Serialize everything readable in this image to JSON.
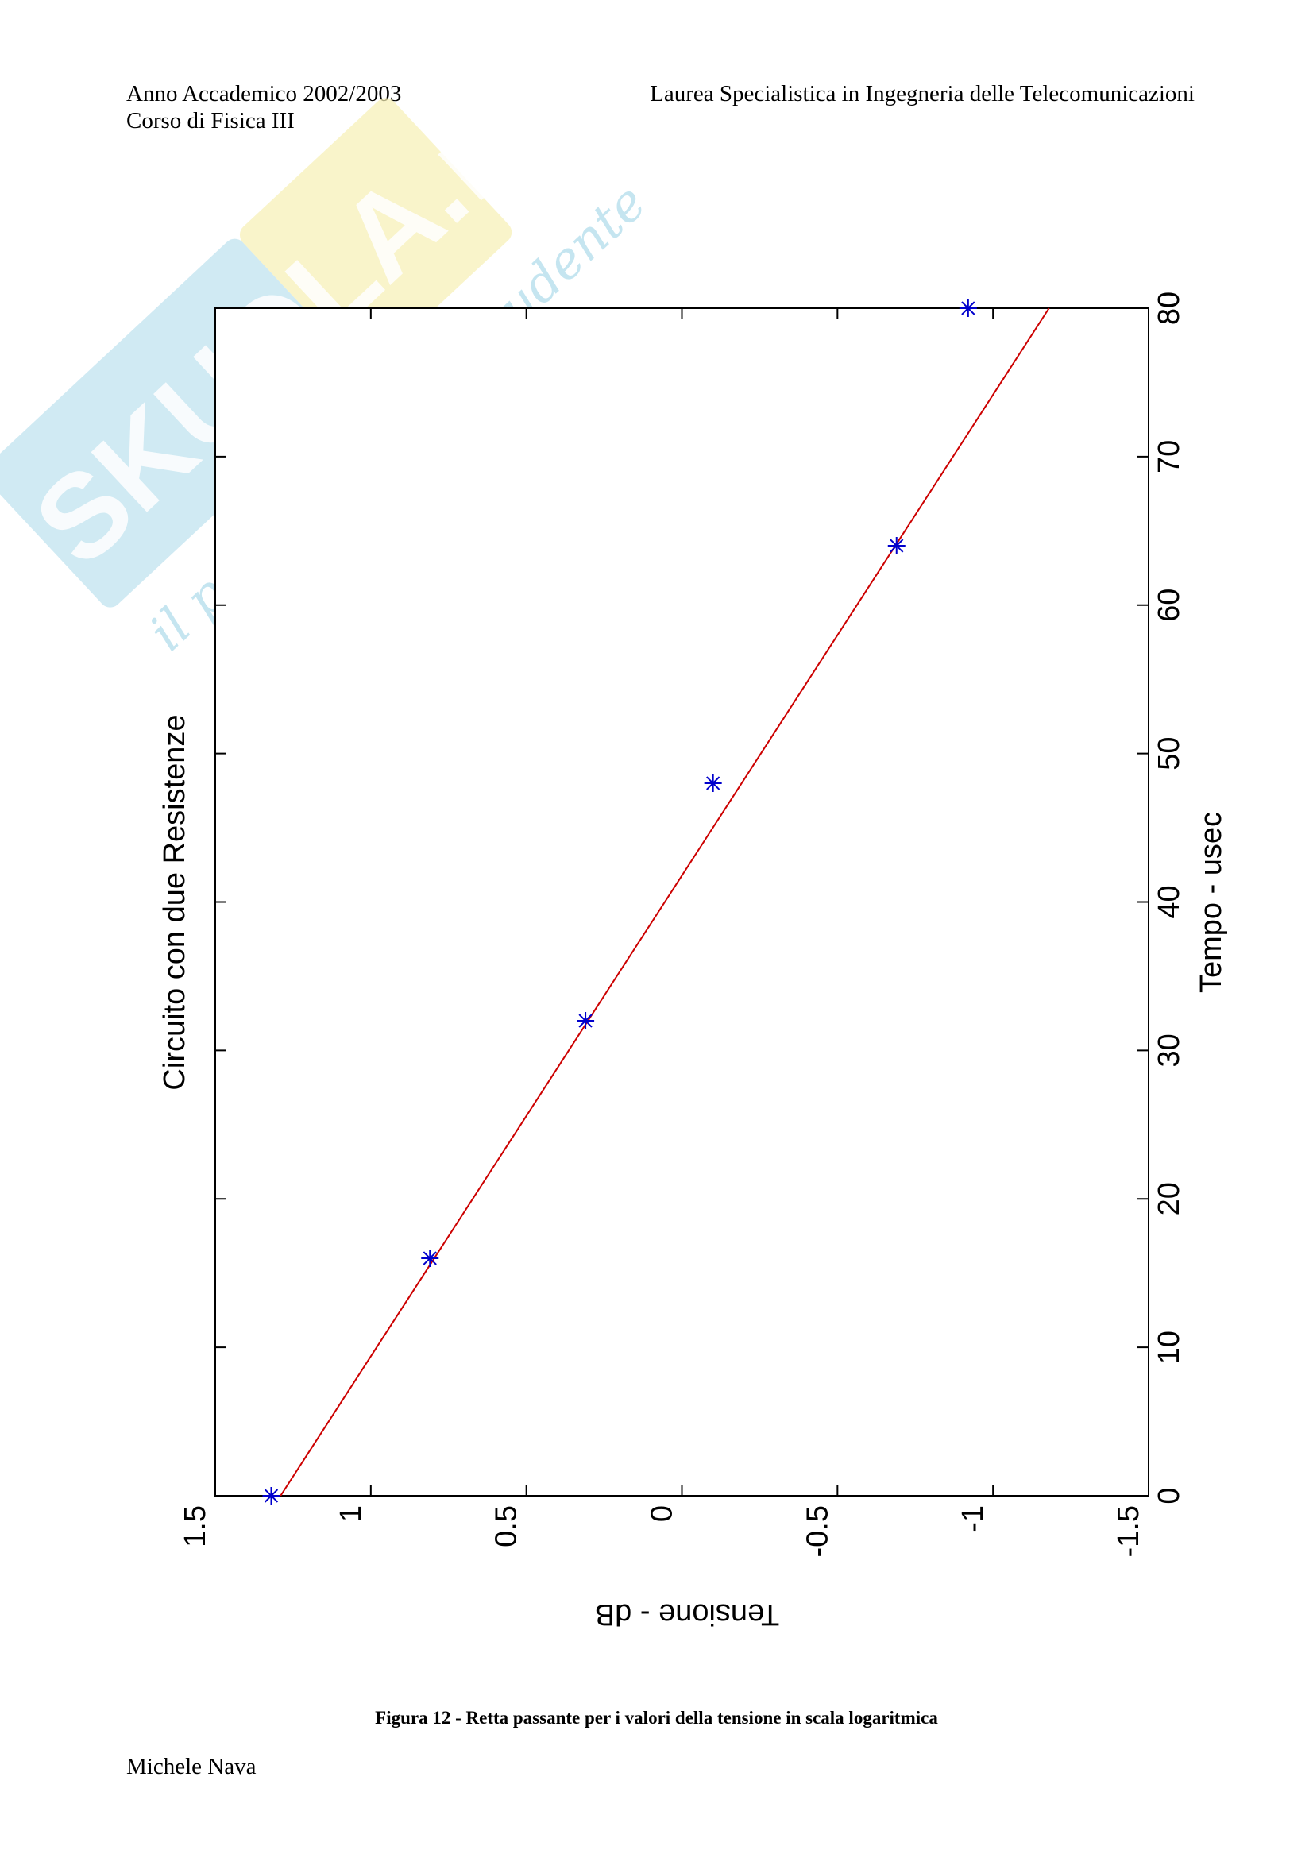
{
  "header": {
    "left_line1": "Anno Accademico 2002/2003",
    "left_line2": "Corso di Fisica III",
    "right": "Laurea Specialistica in Ingegneria delle Telecomunicazioni"
  },
  "watermark": {
    "brand": "SKUOLA.net",
    "tagline": "il paradiso dello studente",
    "color_blue": "#a9d8ea",
    "color_yellow": "#f6f0b4"
  },
  "caption": "Figura 12 - Retta passante per i valori della tensione in scala logaritmica",
  "footer": "Michele Nava",
  "chart_data": {
    "type": "scatter",
    "orientation": "rotated 90° clockwise (x axis drawn vertically on the right, y axis drawn horizontally at the bottom, inverted)",
    "title": "Circuito con due Resistenze",
    "xlabel": "Tempo - usec",
    "ylabel": "Tensione - dB",
    "xlim": [
      0,
      80
    ],
    "ylim": [
      -1.5,
      1.5
    ],
    "x_ticks": [
      "0",
      "10",
      "20",
      "30",
      "40",
      "50",
      "60",
      "70",
      "80"
    ],
    "y_ticks": [
      "1.5",
      "1",
      "0.5",
      "0",
      "-0.5",
      "-1",
      "-1.5"
    ],
    "grid": false,
    "series": [
      {
        "kind": "markers",
        "marker": "*",
        "color": "#0000cc",
        "points": [
          {
            "x": 0,
            "y": 1.32
          },
          {
            "x": 16,
            "y": 0.81
          },
          {
            "x": 32,
            "y": 0.31
          },
          {
            "x": 48,
            "y": -0.1
          },
          {
            "x": 64,
            "y": -0.69
          },
          {
            "x": 80,
            "y": -0.92
          }
        ]
      },
      {
        "kind": "fit-line",
        "color": "#cc0000",
        "points": [
          {
            "x": 0,
            "y": 1.29
          },
          {
            "x": 80,
            "y": -1.18
          }
        ]
      }
    ]
  }
}
